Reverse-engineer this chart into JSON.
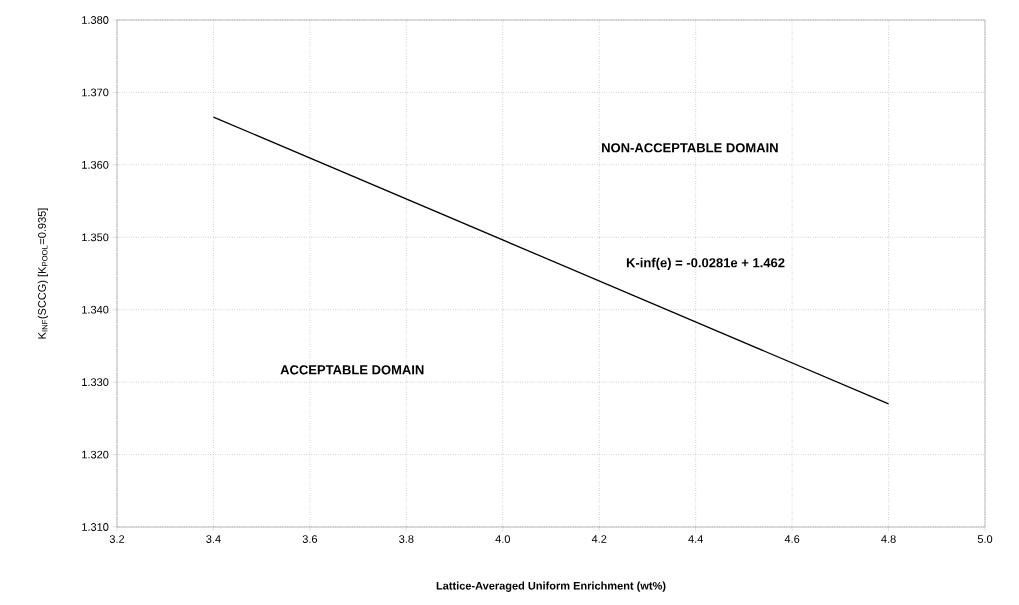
{
  "chart_data": {
    "type": "line",
    "xlabel": "Lattice-Averaged Uniform Enrichment (wt%)",
    "ylabel": "K$_{INF}$(SCCG) [K$_{POOL}$=0.935]",
    "series": [
      {
        "color": "#000000",
        "x": [
          3.4,
          4.8
        ],
        "values": [
          1.3666,
          1.327
        ]
      }
    ],
    "xlim": [
      3.2,
      5.0
    ],
    "xticks": [
      {
        "value": 3.2,
        "label": "3.2"
      },
      {
        "value": 3.4,
        "label": "3.4"
      },
      {
        "value": 3.6,
        "label": "3.6"
      },
      {
        "value": 3.8,
        "label": "3.8"
      },
      {
        "value": 4.0,
        "label": "4.0"
      },
      {
        "value": 4.2,
        "label": "4.2"
      },
      {
        "value": 4.4,
        "label": "4.4"
      },
      {
        "value": 4.6,
        "label": "4.6"
      },
      {
        "value": 4.8,
        "label": "4.8"
      },
      {
        "value": 5.0,
        "label": "5.0"
      }
    ],
    "ylim": [
      1.31,
      1.38
    ],
    "yticks": [
      {
        "value": 1.31,
        "label": "1.310"
      },
      {
        "value": 1.32,
        "label": "1.320"
      },
      {
        "value": 1.33,
        "label": "1.330"
      },
      {
        "value": 1.34,
        "label": "1.340"
      },
      {
        "value": 1.35,
        "label": "1.350"
      },
      {
        "value": 1.36,
        "label": "1.360"
      },
      {
        "value": 1.37,
        "label": "1.370"
      },
      {
        "value": 1.38,
        "label": "1.380"
      }
    ],
    "annotations": [
      "NON-ACCEPTABLE DOMAIN",
      "ACCEPTABLE DOMAIN",
      "K-inf(e) = -0.0281e + 1.462"
    ],
    "grid": true,
    "marker": "none",
    "line_style": "solid"
  }
}
